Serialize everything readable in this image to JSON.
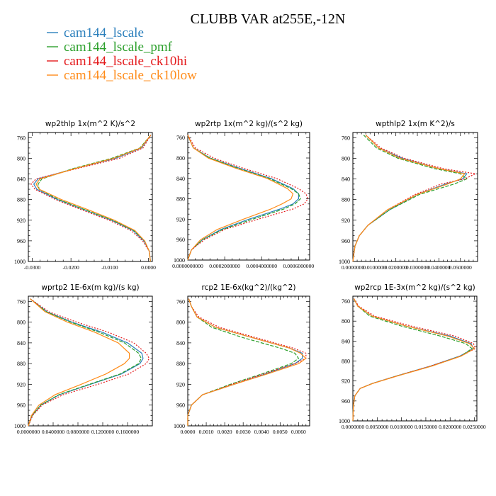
{
  "figure": {
    "title": "CLUBB VAR at255E,-12N",
    "legend": [
      {
        "label": "cam144_lscale",
        "color": "#2b7fbc",
        "dash": "solid"
      },
      {
        "label": "cam144_lscale_pmf",
        "color": "#2ca02c",
        "dash": "dashed"
      },
      {
        "label": "cam144_lscale_ck10hi",
        "color": "#e41a1c",
        "dash": "dotted"
      },
      {
        "label": "cam144_lscale_ck10low",
        "color": "#ff8c1a",
        "dash": "solid"
      }
    ]
  },
  "chart_data": [
    {
      "type": "line",
      "title": "wp2thlp  1x(m^2 K)/s^2",
      "xlim": [
        -0.031,
        0.001
      ],
      "ylim": [
        1000,
        750
      ],
      "xticks": [
        -0.03,
        -0.02,
        -0.01,
        0.0
      ],
      "xtick_labels": [
        "-0.0300",
        "-0.0200",
        "-0.0100",
        "0.0000"
      ],
      "yticks": [
        760,
        800,
        840,
        880,
        920,
        960,
        1000
      ],
      "y": [
        755,
        780,
        800,
        820,
        840,
        850,
        860,
        880,
        900,
        920,
        940,
        960,
        980,
        1000
      ],
      "series": [
        {
          "name": "cam144_lscale",
          "values": [
            0.0006,
            -0.0018,
            -0.0085,
            -0.019,
            -0.0285,
            -0.0296,
            -0.0288,
            -0.0235,
            -0.0165,
            -0.0095,
            -0.004,
            -0.0012,
            0.0002,
            0.0005
          ]
        },
        {
          "name": "cam144_lscale_pmf",
          "values": [
            0.0006,
            -0.0022,
            -0.0095,
            -0.0195,
            -0.0275,
            -0.0285,
            -0.0282,
            -0.0232,
            -0.0163,
            -0.0093,
            -0.0038,
            -0.001,
            0.0002,
            0.0005
          ]
        },
        {
          "name": "cam144_lscale_ck10hi",
          "values": [
            0.0006,
            -0.0014,
            -0.0075,
            -0.0185,
            -0.029,
            -0.0303,
            -0.0293,
            -0.024,
            -0.0172,
            -0.0102,
            -0.0045,
            -0.0015,
            0.0002,
            0.0005
          ]
        },
        {
          "name": "cam144_lscale_ck10low",
          "values": [
            0.0006,
            -0.002,
            -0.009,
            -0.019,
            -0.028,
            -0.029,
            -0.0282,
            -0.0225,
            -0.0155,
            -0.0088,
            -0.0035,
            -0.001,
            0.0002,
            0.0005
          ]
        }
      ]
    },
    {
      "type": "line",
      "title": "wp2rtp  1x(m^2 kg)/(s^2 kg)",
      "xlim": [
        0.0,
        0.00066
      ],
      "ylim": [
        1000,
        750
      ],
      "xticks": [
        0.0,
        0.0002,
        0.0004,
        0.0006
      ],
      "xtick_labels": [
        "0.0000000000",
        "0.0002000000",
        "0.0004000000",
        "0.0006000000"
      ],
      "yticks": [
        760,
        800,
        840,
        880,
        920,
        960,
        1000
      ],
      "y": [
        755,
        780,
        800,
        820,
        840,
        860,
        870,
        880,
        890,
        900,
        920,
        940,
        960,
        980,
        1000
      ],
      "series": [
        {
          "name": "cam144_lscale",
          "values": [
            0.0,
            3e-05,
            0.00012,
            0.00028,
            0.00045,
            0.00057,
            0.0006,
            0.0006,
            0.00057,
            0.0005,
            0.00033,
            0.00018,
            8e-05,
            2e-05,
            0.0
          ]
        },
        {
          "name": "cam144_lscale_pmf",
          "values": [
            0.0,
            3e-05,
            0.00012,
            0.00027,
            0.00044,
            0.00056,
            0.0006,
            0.00061,
            0.00058,
            0.00052,
            0.00035,
            0.00019,
            8e-05,
            2e-05,
            0.0
          ]
        },
        {
          "name": "cam144_lscale_ck10hi",
          "values": [
            0.0,
            4e-05,
            0.00014,
            0.0003,
            0.00048,
            0.0006,
            0.00064,
            0.00065,
            0.00063,
            0.00057,
            0.00038,
            0.0002,
            9e-05,
            2e-05,
            0.0
          ]
        },
        {
          "name": "cam144_lscale_ck10low",
          "values": [
            0.0,
            3e-05,
            0.00011,
            0.00026,
            0.00043,
            0.00054,
            0.00057,
            0.00056,
            0.00051,
            0.00045,
            0.0003,
            0.00016,
            7e-05,
            2e-05,
            0.0
          ]
        }
      ]
    },
    {
      "type": "line",
      "title": "wpthlp2  1x(m K^2)/s",
      "xlim": [
        0.0,
        0.058
      ],
      "ylim": [
        1000,
        750
      ],
      "xticks": [
        0.0,
        0.01,
        0.02,
        0.03,
        0.04,
        0.05
      ],
      "xtick_labels": [
        "0.0000000",
        "0.0100000",
        "0.0200000",
        "0.0300000",
        "0.0400000",
        "0.0500000"
      ],
      "yticks": [
        760,
        800,
        840,
        880,
        920,
        960,
        1000
      ],
      "y": [
        755,
        780,
        800,
        820,
        830,
        840,
        850,
        870,
        900,
        930,
        950,
        970,
        990,
        1000
      ],
      "series": [
        {
          "name": "cam144_lscale",
          "values": [
            0.006,
            0.012,
            0.023,
            0.04,
            0.053,
            0.051,
            0.043,
            0.03,
            0.017,
            0.007,
            0.003,
            0.001,
            0.0003,
            0.0
          ]
        },
        {
          "name": "cam144_lscale_pmf",
          "values": [
            0.005,
            0.011,
            0.021,
            0.038,
            0.05,
            0.053,
            0.047,
            0.031,
            0.017,
            0.007,
            0.003,
            0.001,
            0.0003,
            0.0
          ]
        },
        {
          "name": "cam144_lscale_ck10hi",
          "values": [
            0.006,
            0.013,
            0.024,
            0.042,
            0.057,
            0.052,
            0.041,
            0.029,
            0.016,
            0.007,
            0.003,
            0.001,
            0.0003,
            0.0
          ]
        },
        {
          "name": "cam144_lscale_ck10low",
          "values": [
            0.006,
            0.012,
            0.022,
            0.04,
            0.052,
            0.05,
            0.044,
            0.03,
            0.016,
            0.007,
            0.003,
            0.001,
            0.0003,
            0.0
          ]
        }
      ]
    },
    {
      "type": "line",
      "title": "wprtp2  1E-6x(m kg)/(s kg)",
      "xlim": [
        0.0,
        0.2
      ],
      "ylim": [
        1000,
        750
      ],
      "xticks": [
        0.0,
        0.04,
        0.08,
        0.12,
        0.16
      ],
      "xtick_labels": [
        "0.0000000",
        "0.0400000",
        "0.0800000",
        "0.1200000",
        "0.1600000"
      ],
      "yticks": [
        760,
        800,
        840,
        880,
        920,
        960,
        1000
      ],
      "y": [
        755,
        780,
        800,
        820,
        840,
        860,
        870,
        880,
        900,
        920,
        940,
        960,
        980,
        1000
      ],
      "series": [
        {
          "name": "cam144_lscale",
          "values": [
            0.003,
            0.03,
            0.07,
            0.12,
            0.16,
            0.183,
            0.185,
            0.18,
            0.15,
            0.1,
            0.05,
            0.02,
            0.006,
            0.0
          ]
        },
        {
          "name": "cam144_lscale_pmf",
          "values": [
            0.003,
            0.029,
            0.068,
            0.115,
            0.155,
            0.178,
            0.182,
            0.178,
            0.148,
            0.098,
            0.049,
            0.02,
            0.006,
            0.0
          ]
        },
        {
          "name": "cam144_lscale_ck10hi",
          "values": [
            0.003,
            0.033,
            0.078,
            0.13,
            0.17,
            0.19,
            0.195,
            0.19,
            0.162,
            0.112,
            0.056,
            0.022,
            0.007,
            0.0
          ]
        },
        {
          "name": "cam144_lscale_ck10low",
          "values": [
            0.003,
            0.027,
            0.063,
            0.108,
            0.145,
            0.163,
            0.163,
            0.155,
            0.125,
            0.085,
            0.043,
            0.017,
            0.005,
            0.0
          ]
        }
      ]
    },
    {
      "type": "line",
      "title": "rcp2  1E-6x(kg^2)/(kg^2)",
      "xlim": [
        0.0,
        0.0066
      ],
      "ylim": [
        1000,
        750
      ],
      "xticks": [
        0.0,
        0.001,
        0.002,
        0.003,
        0.004,
        0.005,
        0.006
      ],
      "xtick_labels": [
        "0.0000",
        "0.0010",
        "0.0020",
        "0.0030",
        "0.0040",
        "0.0050",
        "0.0060"
      ],
      "yticks": [
        760,
        800,
        840,
        880,
        920,
        960,
        1000
      ],
      "y": [
        755,
        770,
        790,
        810,
        830,
        850,
        860,
        870,
        880,
        900,
        920,
        940,
        960,
        980,
        1000
      ],
      "series": [
        {
          "name": "cam144_lscale",
          "values": [
            5e-05,
            0.0002,
            0.0005,
            0.0015,
            0.0035,
            0.0055,
            0.0062,
            0.0062,
            0.0058,
            0.0042,
            0.0025,
            0.0008,
            0.0002,
            0.0,
            0.0
          ]
        },
        {
          "name": "cam144_lscale_pmf",
          "values": [
            5e-05,
            0.0002,
            0.0005,
            0.0013,
            0.003,
            0.005,
            0.0058,
            0.006,
            0.0056,
            0.004,
            0.0023,
            0.0008,
            0.0002,
            0.0,
            0.0
          ]
        },
        {
          "name": "cam144_lscale_ck10hi",
          "values": [
            5e-05,
            0.0002,
            0.0006,
            0.0017,
            0.0037,
            0.0057,
            0.0064,
            0.0064,
            0.0058,
            0.0041,
            0.0024,
            0.0008,
            0.0002,
            0.0,
            0.0
          ]
        },
        {
          "name": "cam144_lscale_ck10low",
          "values": [
            5e-05,
            0.0002,
            0.0005,
            0.0015,
            0.0035,
            0.0055,
            0.0061,
            0.0064,
            0.006,
            0.0043,
            0.0025,
            0.0008,
            0.0002,
            0.0,
            0.0
          ]
        }
      ]
    },
    {
      "type": "line",
      "title": "wp2rcp  1E-3x(m^2 kg)/(s^2 kg)",
      "xlim": [
        0.0,
        0.0255
      ],
      "ylim": [
        1000,
        750
      ],
      "xticks": [
        0.0,
        0.005,
        0.01,
        0.015,
        0.02,
        0.025
      ],
      "xtick_labels": [
        "0.0000000",
        "0.0050000",
        "0.0100000",
        "0.0150000",
        "0.0200000",
        "0.0250000"
      ],
      "yticks": [
        760,
        800,
        840,
        880,
        920,
        960,
        1000
      ],
      "y": [
        755,
        770,
        790,
        810,
        830,
        845,
        855,
        870,
        890,
        910,
        925,
        935,
        950,
        970,
        1000
      ],
      "series": [
        {
          "name": "cam144_lscale",
          "values": [
            0.0002,
            0.001,
            0.004,
            0.011,
            0.02,
            0.0243,
            0.0248,
            0.022,
            0.016,
            0.009,
            0.004,
            0.0015,
            0.0004,
            0.0001,
            0.0
          ]
        },
        {
          "name": "cam144_lscale_pmf",
          "values": [
            0.0002,
            0.001,
            0.0035,
            0.01,
            0.018,
            0.0232,
            0.0245,
            0.0222,
            0.0162,
            0.009,
            0.004,
            0.0015,
            0.0004,
            0.0001,
            0.0
          ]
        },
        {
          "name": "cam144_lscale_ck10hi",
          "values": [
            0.0002,
            0.0012,
            0.0045,
            0.012,
            0.021,
            0.0248,
            0.0252,
            0.0222,
            0.016,
            0.009,
            0.004,
            0.0015,
            0.0004,
            0.0001,
            0.0
          ]
        },
        {
          "name": "cam144_lscale_ck10low",
          "values": [
            0.0002,
            0.001,
            0.004,
            0.011,
            0.0195,
            0.024,
            0.025,
            0.0223,
            0.0163,
            0.0092,
            0.0041,
            0.0015,
            0.0004,
            0.0001,
            0.0
          ]
        }
      ]
    }
  ]
}
